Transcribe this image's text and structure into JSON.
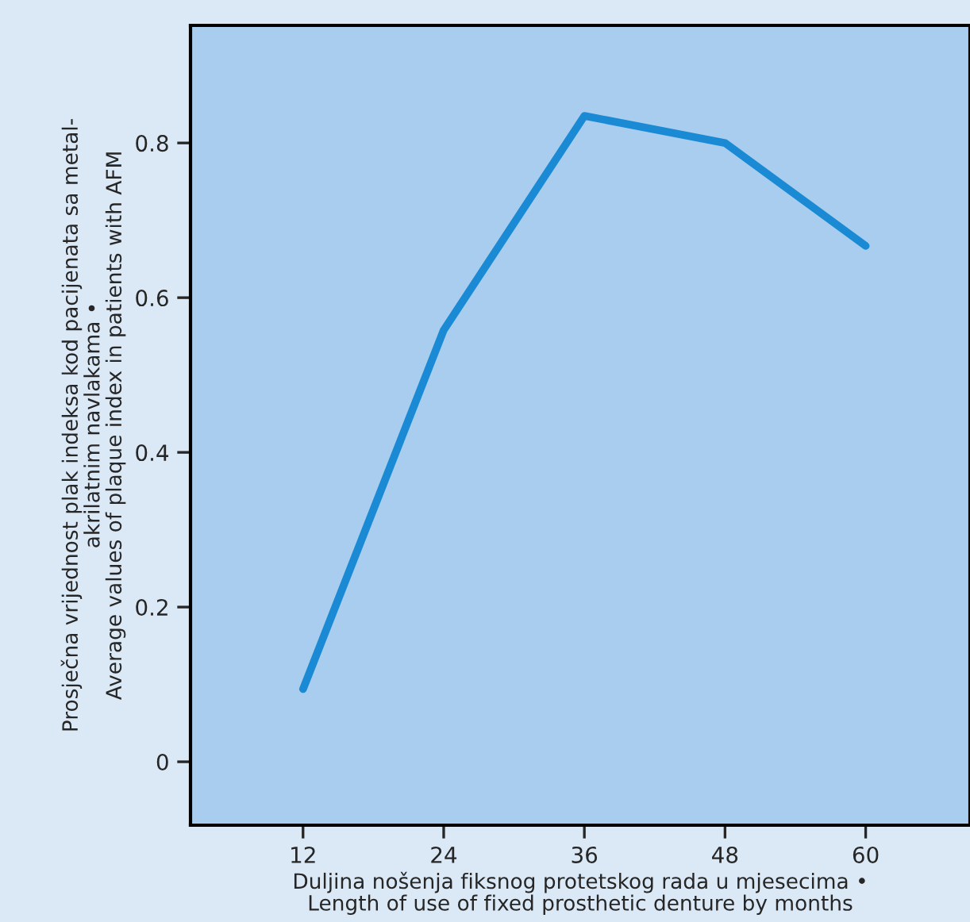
{
  "chart_data": {
    "type": "line",
    "xlabel": "Duljina nošenja fiksnog protetskog rada u mjesecima •\nLength of use of fixed prosthetic denture by months",
    "ylabel": "Prosječna vrijednost plak indeksa kod pacijenata sa metal-\nakrilatnim navlakama •\nAverage values of plaque index in patients with AFM",
    "x": [
      12,
      24,
      36,
      48,
      60
    ],
    "series": [
      {
        "color": "#1a8ad4",
        "values": [
          0.094,
          0.558,
          0.835,
          0.8,
          0.667
        ]
      }
    ],
    "xlim": [
      2.4,
      68.9
    ],
    "xticks": [
      12,
      24,
      36,
      48,
      60
    ],
    "ylim": [
      -0.082,
      0.952
    ],
    "yticks": [
      {
        "value": 0,
        "label": "0"
      },
      0.2,
      0.4,
      0.6,
      0.8
    ],
    "grid": false,
    "marker": "none",
    "line_style": "solid"
  }
}
